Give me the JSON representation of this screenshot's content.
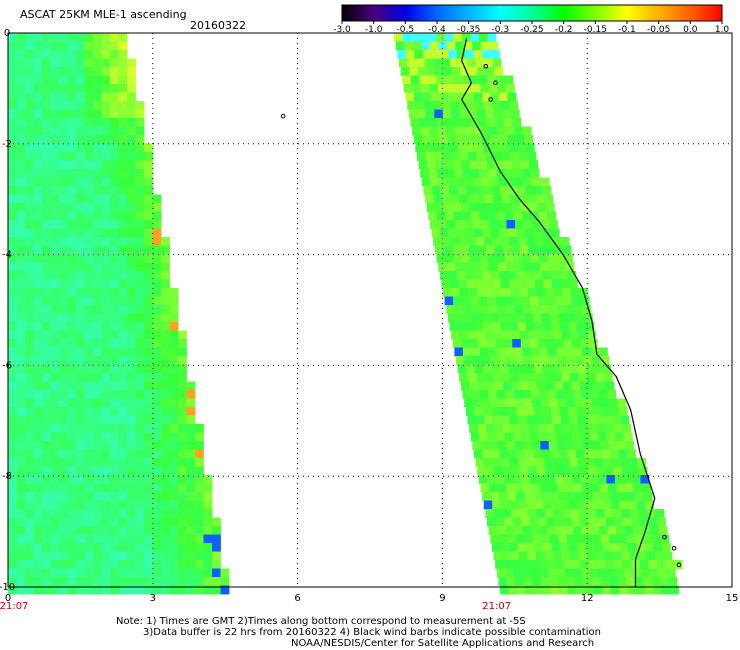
{
  "header": {
    "title": "ASCAT 25KM MLE-1 ascending",
    "date": "20160322"
  },
  "colorbar": {
    "labels": [
      "-3.0",
      "-1.0",
      "-0.5",
      "-0.4",
      "-0.35",
      "-0.3",
      "-0.25",
      "-0.2",
      "-0.15",
      "-0.1",
      "-0.05",
      "0.0",
      "1.0"
    ],
    "colors": [
      "#000000",
      "#4a007a",
      "#0000e6",
      "#0066ff",
      "#00b4ff",
      "#00ffff",
      "#00ff9a",
      "#00ff00",
      "#7dff00",
      "#ffff00",
      "#ffb000",
      "#ff6000",
      "#ff0000"
    ]
  },
  "chart_data": {
    "type": "heatmap",
    "title": "ASCAT 25KM MLE-1 ascending",
    "x_ticks": [
      "0",
      "3",
      "6",
      "9",
      "12",
      "15"
    ],
    "y_ticks": [
      "0",
      "-2",
      "-4",
      "-6",
      "-8",
      "-10"
    ],
    "xlim": [
      0,
      15
    ],
    "ylim": [
      -10,
      0
    ],
    "grid": true,
    "time_labels": [
      {
        "x": 0,
        "text": "21:07"
      },
      {
        "x": 10,
        "text": "21:07"
      }
    ],
    "swaths": [
      {
        "name": "left",
        "x_left": [
          0,
          0
        ],
        "x_right": [
          2.4,
          4.5
        ],
        "dominant_value_range": [
          -0.35,
          -0.15
        ]
      },
      {
        "name": "right",
        "x_left": [
          8.0,
          10.2
        ],
        "x_right": [
          10.0,
          13.8
        ],
        "dominant_value_range": [
          -0.25,
          -0.1
        ]
      }
    ]
  },
  "footer": {
    "note_line1": "Note: 1) Times are GMT 2)Times along bottom correspond to measurement at -5S",
    "note_line2": "3)Data buffer is 22 hrs from 20160322 4) Black wind barbs indicate possible contamination",
    "note_line3": "NOAA/NESDIS/Center for Satellite Applications and Research"
  }
}
